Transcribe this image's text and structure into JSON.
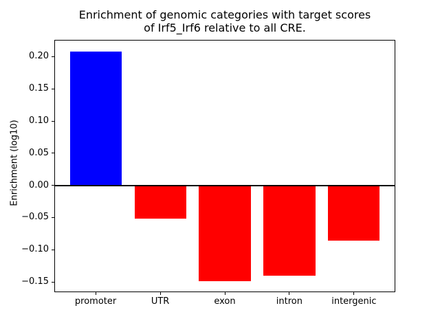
{
  "figure": {
    "background": "#ffffff",
    "frame_color": "#000000"
  },
  "chart_data": {
    "type": "bar",
    "title": "Enrichment of genomic categories with target scores\nof Irf5_Irf6 relative to all CRE.",
    "xlabel": "",
    "ylabel": "Enrichment (log10)",
    "categories": [
      "promoter",
      "UTR",
      "exon",
      "intron",
      "intergenic"
    ],
    "values": [
      0.208,
      -0.052,
      -0.149,
      -0.14,
      -0.086
    ],
    "bar_colors": [
      "#0000ff",
      "#ff0000",
      "#ff0000",
      "#ff0000",
      "#ff0000"
    ],
    "positive_color": "#0000ff",
    "negative_color": "#ff0000",
    "yticks": [
      {
        "value": 0.2,
        "label": "0.20"
      },
      {
        "value": 0.15,
        "label": "0.15"
      },
      {
        "value": 0.1,
        "label": "0.10"
      },
      {
        "value": 0.05,
        "label": "0.05"
      },
      {
        "value": 0.0,
        "label": "0.00"
      },
      {
        "value": -0.05,
        "label": "−0.05"
      },
      {
        "value": -0.1,
        "label": "−0.10"
      },
      {
        "value": -0.15,
        "label": "−0.15"
      }
    ],
    "ylim": [
      -0.166,
      0.226
    ],
    "xlim": [
      -0.64,
      4.64
    ],
    "bar_width": 0.8,
    "grid": false,
    "legend_position": null,
    "zero_line": true
  }
}
